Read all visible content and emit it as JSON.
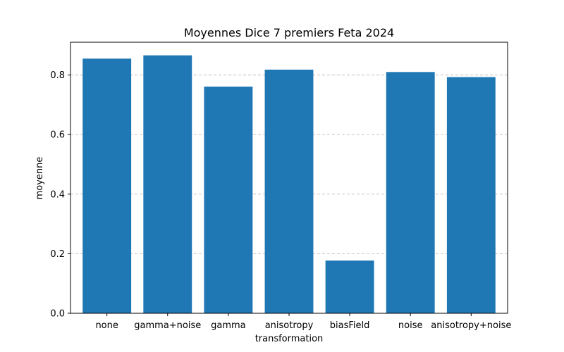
{
  "chart_data": {
    "type": "bar",
    "title": "Moyennes Dice 7 premiers Feta 2024",
    "xlabel": "transformation",
    "ylabel": "moyenne",
    "categories": [
      "none",
      "gamma+noise",
      "gamma",
      "anisotropy",
      "biasField",
      "noise",
      "anisotropy+noise"
    ],
    "values": [
      0.855,
      0.866,
      0.761,
      0.818,
      0.177,
      0.81,
      0.793
    ],
    "ylim": [
      0,
      0.91
    ],
    "yticks": [
      0.0,
      0.2,
      0.4,
      0.6,
      0.8
    ],
    "ytick_labels": [
      "0.0",
      "0.2",
      "0.4",
      "0.6",
      "0.8"
    ],
    "grid": "y-dashed",
    "bar_color": "#1f77b4",
    "grid_color": "#b0b0b0"
  }
}
